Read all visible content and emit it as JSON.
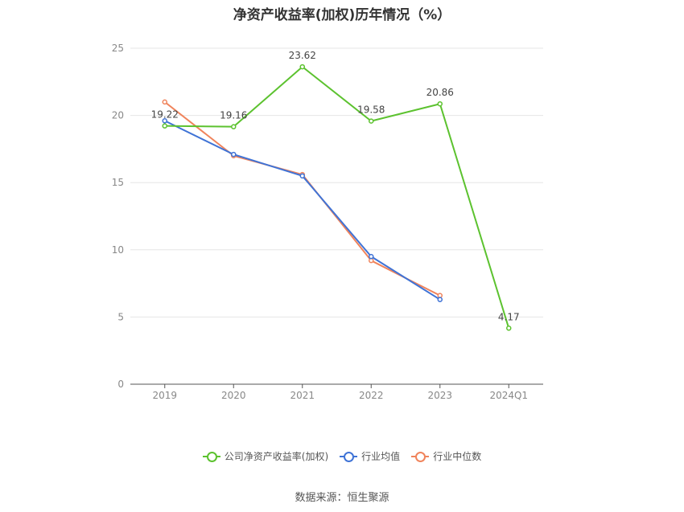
{
  "chart_data": {
    "type": "line",
    "title": "净资产收益率(加权)历年情况（%）",
    "categories": [
      "2019",
      "2020",
      "2021",
      "2022",
      "2023",
      "2024Q1"
    ],
    "ylim": [
      0,
      25
    ],
    "yticks": [
      0,
      5,
      10,
      15,
      20,
      25
    ],
    "grid": true,
    "legend_position": "bottom",
    "series": [
      {
        "name": "公司净资产收益率(加权)",
        "color": "#5cc22f",
        "values": [
          19.22,
          19.16,
          23.62,
          19.58,
          20.86,
          4.17
        ],
        "labels": [
          "19.22",
          "19.16",
          "23.62",
          "19.58",
          "20.86",
          "4.17"
        ]
      },
      {
        "name": "行业均值",
        "color": "#3f73d6",
        "values": [
          19.6,
          17.1,
          15.5,
          9.5,
          6.3,
          null
        ]
      },
      {
        "name": "行业中位数",
        "color": "#f0845c",
        "values": [
          21.0,
          17.0,
          15.6,
          9.2,
          6.6,
          null
        ]
      }
    ]
  },
  "source": "数据来源：恒生聚源"
}
